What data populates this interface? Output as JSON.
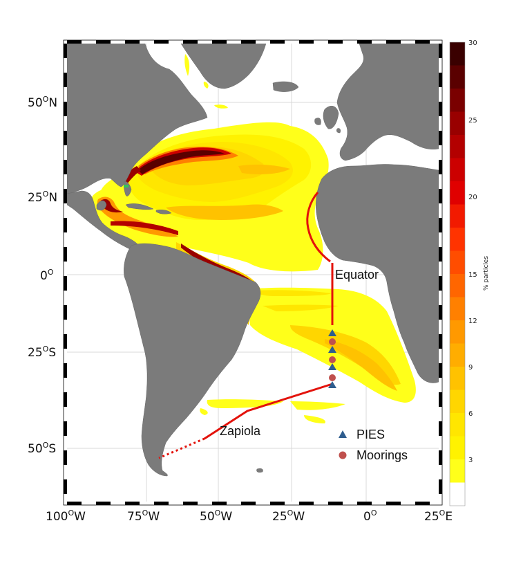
{
  "axes": {
    "lat_ticks": [
      {
        "text": "50°N",
        "deg": "50",
        "o": "O",
        "hem": "N"
      },
      {
        "text": "25°N",
        "deg": "25",
        "o": "O",
        "hem": "N"
      },
      {
        "text": "0°",
        "deg": "0",
        "o": "O",
        "hem": ""
      },
      {
        "text": "25°S",
        "deg": "25",
        "o": "O",
        "hem": "S"
      },
      {
        "text": "50°S",
        "deg": "50",
        "o": "O",
        "hem": "S"
      }
    ],
    "lon_ticks": [
      {
        "deg": "100",
        "o": "O",
        "hem": "W"
      },
      {
        "deg": "75",
        "o": "O",
        "hem": "W"
      },
      {
        "deg": "50",
        "o": "O",
        "hem": "W"
      },
      {
        "deg": "25",
        "o": "O",
        "hem": "W"
      },
      {
        "deg": "0",
        "o": "O",
        "hem": ""
      },
      {
        "deg": "25",
        "o": "O",
        "hem": "E"
      }
    ]
  },
  "labels": {
    "equator": "Equator",
    "zapiola": "Zapiola"
  },
  "legend": {
    "pies": "PIES",
    "moorings": "Moorings"
  },
  "colorbar": {
    "title": "% particles",
    "ticks": [
      "30",
      "25",
      "20",
      "15",
      "12",
      "9",
      "6",
      "3"
    ],
    "colors": [
      "#3a0000",
      "#5a0000",
      "#7a0000",
      "#990000",
      "#b30000",
      "#cc0000",
      "#e00000",
      "#f21a00",
      "#ff3300",
      "#ff4d00",
      "#ff6600",
      "#ff8000",
      "#ff9900",
      "#ffad00",
      "#ffc200",
      "#ffd600",
      "#ffe600",
      "#fff200",
      "#ffff1a",
      "#ffffff"
    ]
  },
  "colors": {
    "land": "#7b7b7b",
    "section_line": "#e3120b",
    "pies_marker": "#2e5d8e",
    "moorings_marker": "#c0504d"
  }
}
